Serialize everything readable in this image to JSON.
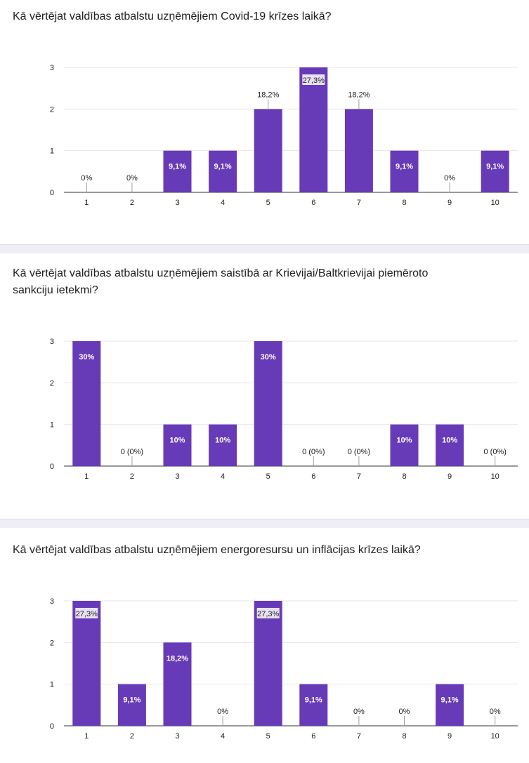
{
  "chart_data": [
    {
      "type": "bar",
      "title": "Kā vērtējat valdības atbalstu uzņēmējiem Covid-19 krīzes laikā?",
      "categories": [
        "1",
        "2",
        "3",
        "4",
        "5",
        "6",
        "7",
        "8",
        "9",
        "10"
      ],
      "values": [
        0,
        0,
        1,
        1,
        2,
        3,
        2,
        1,
        0,
        1
      ],
      "data_labels": [
        "0%",
        "0%",
        "9,1%",
        "9,1%",
        "18,2%",
        "27,3%",
        "18,2%",
        "9,1%",
        "0%",
        "9,1%"
      ],
      "yticks": [
        "0",
        "1",
        "2",
        "3"
      ],
      "ylim": [
        0,
        3
      ],
      "grid": true,
      "bar_color": "#673ab7"
    },
    {
      "type": "bar",
      "title": "Kā vērtējat valdības atbalstu uzņēmējiem saistībā ar Krievijai/Baltkrievijai piemēroto sankciju ietekmi?",
      "categories": [
        "1",
        "2",
        "3",
        "4",
        "5",
        "6",
        "7",
        "8",
        "9",
        "10"
      ],
      "values": [
        3,
        0,
        1,
        1,
        3,
        0,
        0,
        1,
        1,
        0
      ],
      "data_labels": [
        "30%",
        "0 (0%)",
        "10%",
        "10%",
        "30%",
        "0 (0%)",
        "0 (0%)",
        "10%",
        "10%",
        "0 (0%)"
      ],
      "yticks": [
        "0",
        "1",
        "2",
        "3"
      ],
      "ylim": [
        0,
        3
      ],
      "grid": true,
      "bar_color": "#673ab7"
    },
    {
      "type": "bar",
      "title": "Kā vērtējat valdības atbalstu uzņēmējiem energoresursu un inflācijas krīzes laikā?",
      "categories": [
        "1",
        "2",
        "3",
        "4",
        "5",
        "6",
        "7",
        "8",
        "9",
        "10"
      ],
      "values": [
        3,
        1,
        2,
        0,
        3,
        1,
        0,
        0,
        1,
        0
      ],
      "data_labels": [
        "27,3%",
        "9,1%",
        "18,2%",
        "0%",
        "27,3%",
        "9,1%",
        "0%",
        "0%",
        "9,1%",
        "0%"
      ],
      "yticks": [
        "0",
        "1",
        "2",
        "3"
      ],
      "ylim": [
        0,
        3
      ],
      "grid": true,
      "bar_color": "#673ab7"
    }
  ]
}
